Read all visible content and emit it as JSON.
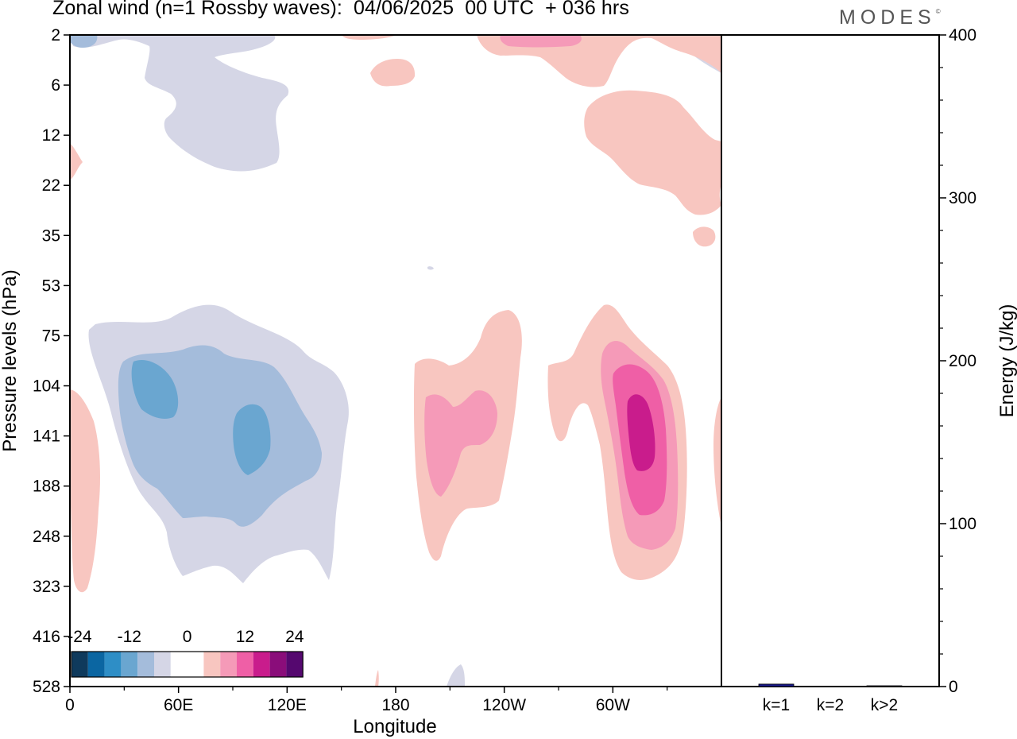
{
  "title": "Zonal wind (n=1 Rossby waves):  04/06/2025  00 UTC  + 036 hrs",
  "brand": "MODES",
  "brand_mark": "©",
  "chart_data": [
    {
      "type": "heatmap",
      "xlabel": "Longitude",
      "ylabel": "Pressure levels (hPa)",
      "x_ticks": [
        "0",
        "60E",
        "120E",
        "180",
        "120W",
        "60W"
      ],
      "y_ticks": [
        "2",
        "6",
        "12",
        "22",
        "35",
        "53",
        "75",
        "104",
        "141",
        "188",
        "248",
        "323",
        "416",
        "528"
      ],
      "colorbar": {
        "labels": [
          "-24",
          "-12",
          "0",
          "12",
          "24"
        ],
        "colors": [
          "#0f3a5c",
          "#0b66a2",
          "#2e8ec6",
          "#6aa6d0",
          "#a4bcdb",
          "#d5d6e6",
          "#ffffff",
          "#ffffff",
          "#f8c6c0",
          "#f59ab8",
          "#ef5fa6",
          "#c91c8c",
          "#8a0d7a",
          "#55086f"
        ]
      },
      "contours": [
        {
          "name": "neg-upper",
          "level": "-4",
          "fill": "#d5d6e6"
        },
        {
          "name": "neg-main",
          "level": "-4",
          "fill": "#d5d6e6"
        },
        {
          "name": "neg-main-inner",
          "level": "-8",
          "fill": "#a4bcdb"
        },
        {
          "name": "neg-core-west",
          "level": "-12",
          "fill": "#6aa6d0"
        },
        {
          "name": "neg-core-east",
          "level": "-12",
          "fill": "#6aa6d0"
        },
        {
          "name": "pos-center",
          "level": "4",
          "fill": "#f8c6c0"
        },
        {
          "name": "pos-center-inner",
          "level": "8",
          "fill": "#f59ab8"
        },
        {
          "name": "pos-east",
          "level": "4",
          "fill": "#f8c6c0"
        },
        {
          "name": "pos-east-inner",
          "level": "8",
          "fill": "#f59ab8"
        },
        {
          "name": "pos-east-inner2",
          "level": "12",
          "fill": "#ef5fa6"
        },
        {
          "name": "pos-east-core",
          "level": "16",
          "fill": "#c91c8c"
        },
        {
          "name": "pos-upper-east",
          "level": "4",
          "fill": "#f8c6c0"
        },
        {
          "name": "pos-upper-east-inner",
          "level": "8",
          "fill": "#f59ab8"
        }
      ]
    },
    {
      "type": "bar",
      "categories": [
        "k=1",
        "k=2",
        "k>2"
      ],
      "values": [
        1.5,
        0,
        0.5
      ],
      "ylabel": "Energy (J/kg)",
      "y_ticks": [
        "0",
        "100",
        "200",
        "300",
        "400"
      ],
      "ylim": [
        0,
        400
      ],
      "bar_color": "#1a1a8c"
    }
  ]
}
